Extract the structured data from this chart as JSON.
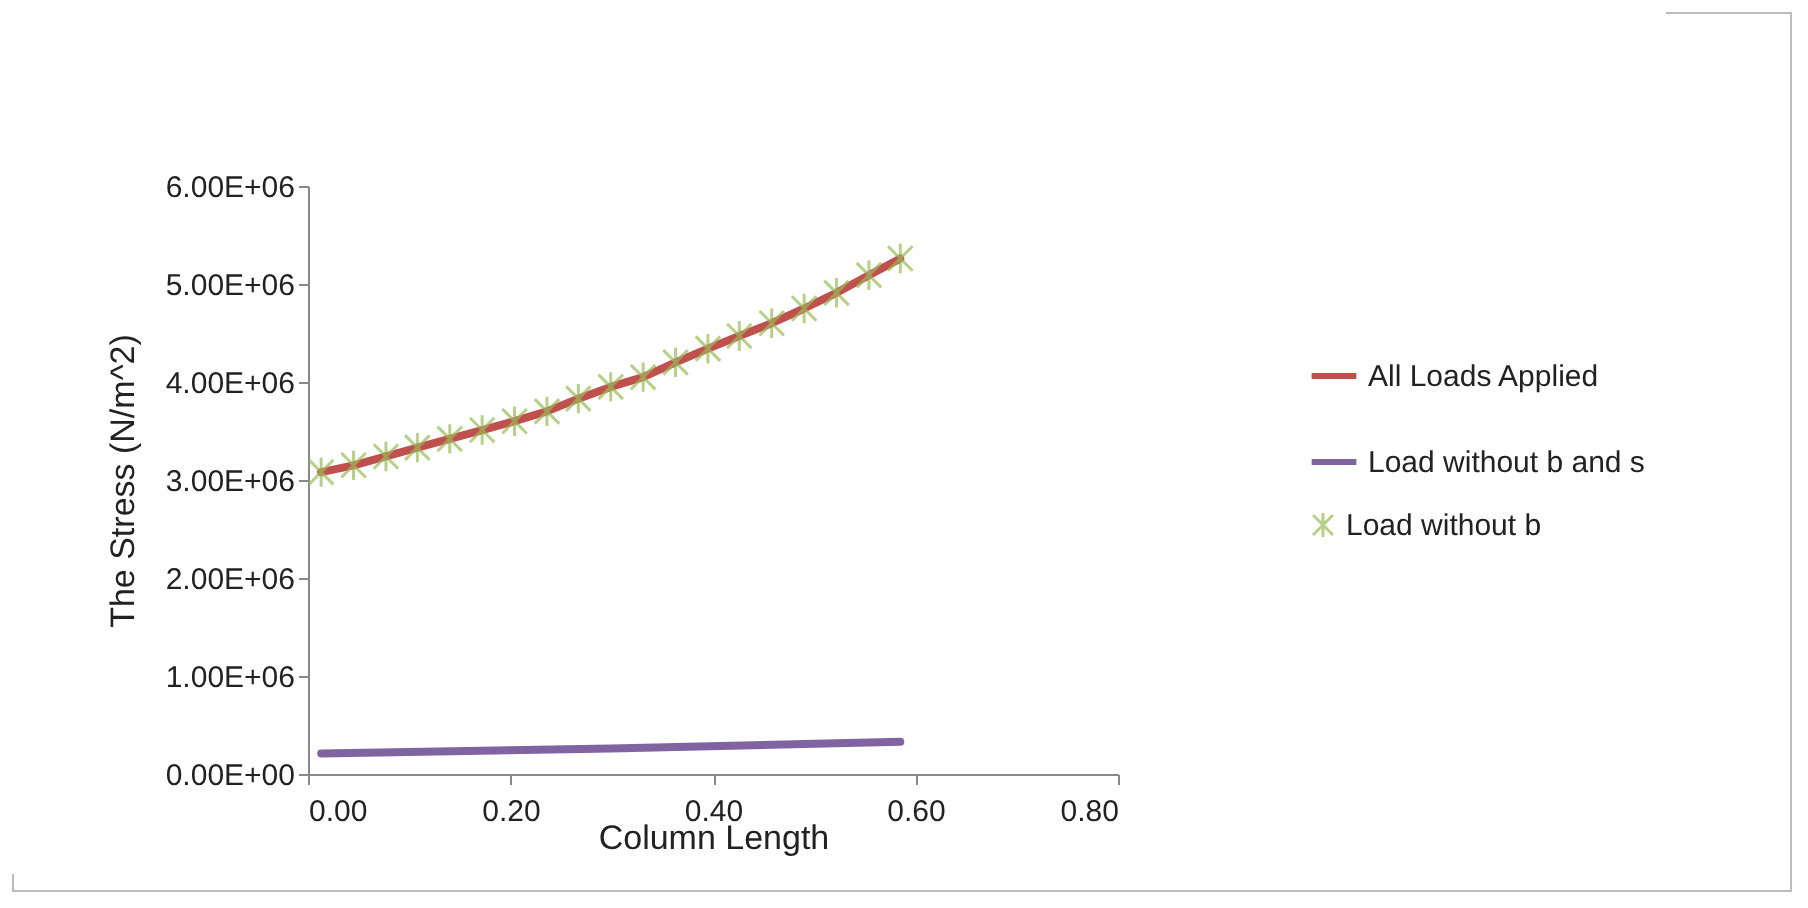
{
  "chart_data": {
    "type": "line",
    "xlabel": "Column Length",
    "ylabel": "The Stress (N/m^2)",
    "x": [
      0.013,
      0.045,
      0.077,
      0.108,
      0.14,
      0.172,
      0.204,
      0.236,
      0.267,
      0.299,
      0.331,
      0.363,
      0.395,
      0.426,
      0.458,
      0.49,
      0.522,
      0.554,
      0.585
    ],
    "series": [
      {
        "name": "All Loads Applied",
        "color": "#c0504d",
        "values": [
          3080000,
          3150000,
          3240000,
          3330000,
          3420000,
          3510000,
          3600000,
          3700000,
          3830000,
          3950000,
          4050000,
          4200000,
          4340000,
          4470000,
          4600000,
          4750000,
          4910000,
          5090000,
          5260000
        ]
      },
      {
        "name": "Load without b and s",
        "color": "#8064a2",
        "x": [
          0.013,
          0.299,
          0.585
        ],
        "values": [
          210000,
          260000,
          330000
        ]
      },
      {
        "name": "Load without b",
        "color": "#9bbb59",
        "type": "scatter",
        "marker": "cross",
        "values": [
          3080000,
          3150000,
          3240000,
          3330000,
          3420000,
          3510000,
          3600000,
          3700000,
          3830000,
          3950000,
          4050000,
          4200000,
          4340000,
          4470000,
          4600000,
          4750000,
          4910000,
          5090000,
          5260000
        ]
      }
    ],
    "xlim": [
      0,
      0.8
    ],
    "xticks": [
      {
        "value": 0,
        "label": "0.00"
      },
      {
        "value": 0.2,
        "label": "0.20"
      },
      {
        "value": 0.4,
        "label": "0.40"
      },
      {
        "value": 0.6,
        "label": "0.60"
      },
      {
        "value": 0.8,
        "label": "0.80"
      }
    ],
    "ylim": [
      0,
      6000000
    ],
    "yticks": [
      {
        "value": 0,
        "label": "0.00E+00"
      },
      {
        "value": 1000000,
        "label": "1.00E+06"
      },
      {
        "value": 2000000,
        "label": "2.00E+06"
      },
      {
        "value": 3000000,
        "label": "3.00E+06"
      },
      {
        "value": 4000000,
        "label": "4.00E+06"
      },
      {
        "value": 5000000,
        "label": "5.00E+06"
      },
      {
        "value": 6000000,
        "label": "6.00E+06"
      }
    ],
    "grid": false,
    "legend": "right"
  }
}
